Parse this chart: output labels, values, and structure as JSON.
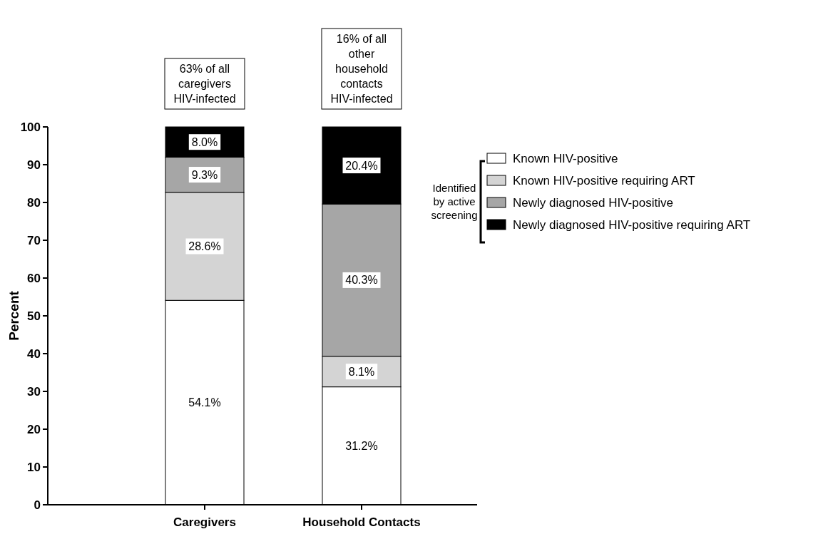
{
  "chart_data": {
    "type": "bar",
    "stacked": true,
    "ylabel": "Percent",
    "categories": [
      "Caregivers",
      "Household Contacts"
    ],
    "ylim": [
      0,
      100
    ],
    "yticks": [
      0,
      10,
      20,
      30,
      40,
      50,
      60,
      70,
      80,
      90,
      100
    ],
    "grid": false,
    "legend": "right",
    "series": [
      {
        "name": "Known HIV-positive",
        "color": "#ffffff",
        "values": [
          54.1,
          31.2
        ],
        "value_labels": [
          "54.1%",
          "31.2%"
        ]
      },
      {
        "name": "Known HIV-positive requiring ART",
        "color": "#d4d4d4",
        "values": [
          28.6,
          8.1
        ],
        "value_labels": [
          "28.6%",
          "8.1%"
        ]
      },
      {
        "name": "Newly diagnosed HIV-positive",
        "color": "#a6a6a6",
        "values": [
          9.3,
          40.3
        ],
        "value_labels": [
          "9.3%",
          "40.3%"
        ]
      },
      {
        "name": "Newly diagnosed HIV-positive requiring ART",
        "color": "#000000",
        "values": [
          8.0,
          20.4
        ],
        "value_labels": [
          "8.0%",
          "20.4%"
        ]
      }
    ],
    "annotations": [
      "63% of all\ncaregivers\nHIV-infected",
      "16% of all\nother\nhousehold\ncontacts\nHIV-infected",
      "Identified\nby active\nscreening"
    ]
  }
}
